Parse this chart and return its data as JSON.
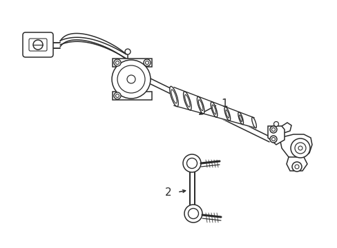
{
  "bg_color": "#ffffff",
  "line_color": "#2a2a2a",
  "line_width": 1.1,
  "label1": "1",
  "label2": "2",
  "figsize": [
    4.89,
    3.6
  ],
  "dpi": 100
}
